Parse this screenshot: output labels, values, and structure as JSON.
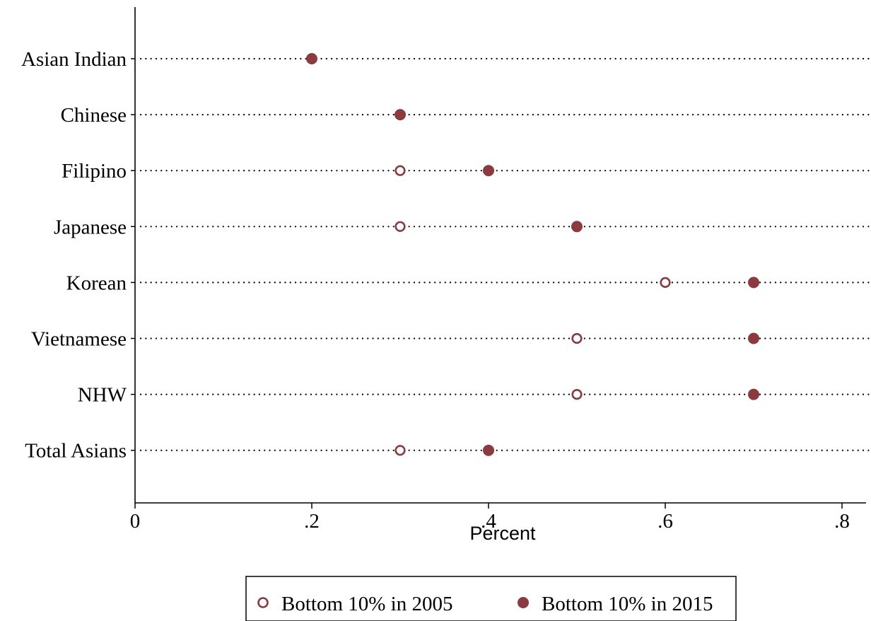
{
  "chart_data": {
    "type": "scatter",
    "orientation": "horizontal-dot",
    "title": "",
    "xlabel": "Percent",
    "ylabel": "",
    "xlim": [
      0,
      0.825
    ],
    "x_ticks": [
      0,
      0.2,
      0.4,
      0.6,
      0.8
    ],
    "x_tick_labels": [
      "0",
      ".2",
      ".4",
      ".6",
      ".8"
    ],
    "categories": [
      "Asian Indian",
      "Chinese",
      "Filipino",
      "Japanese",
      "Korean",
      "Vietnamese",
      "NHW",
      "Total Asians"
    ],
    "series": [
      {
        "name": "Bottom 10% in 2005",
        "marker": "hollow-circle",
        "values": [
          0.2,
          0.3,
          0.3,
          0.3,
          0.6,
          0.5,
          0.5,
          0.3
        ]
      },
      {
        "name": "Bottom 10% in 2015",
        "marker": "filled-circle",
        "values": [
          0.2,
          0.3,
          0.4,
          0.5,
          0.7,
          0.7,
          0.7,
          0.4
        ]
      }
    ],
    "grid": "dotted-horizontal",
    "legend_position": "bottom-center",
    "colors": {
      "marker": "#8b3a3f",
      "axis": "#000000",
      "gridline": "#000000"
    }
  }
}
